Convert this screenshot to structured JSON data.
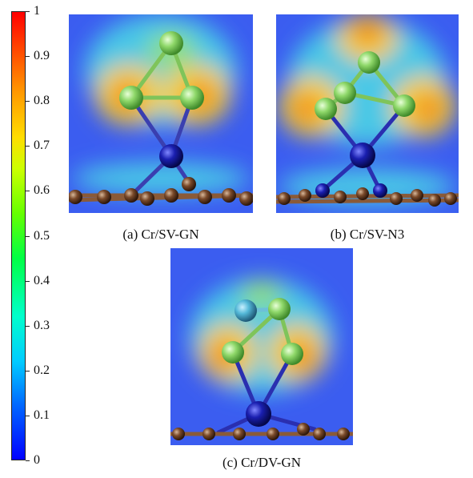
{
  "colorbar": {
    "ticks": [
      "1",
      "0.9",
      "0.8",
      "0.7",
      "0.6",
      "0.5",
      "0.4",
      "0.3",
      "0.2",
      "0.1",
      "0"
    ]
  },
  "panels": [
    {
      "caption": "(a) Cr/SV-GN"
    },
    {
      "caption": "(b) Cr/SV-N3"
    },
    {
      "caption": "(c) Cr/DV-GN"
    }
  ]
}
